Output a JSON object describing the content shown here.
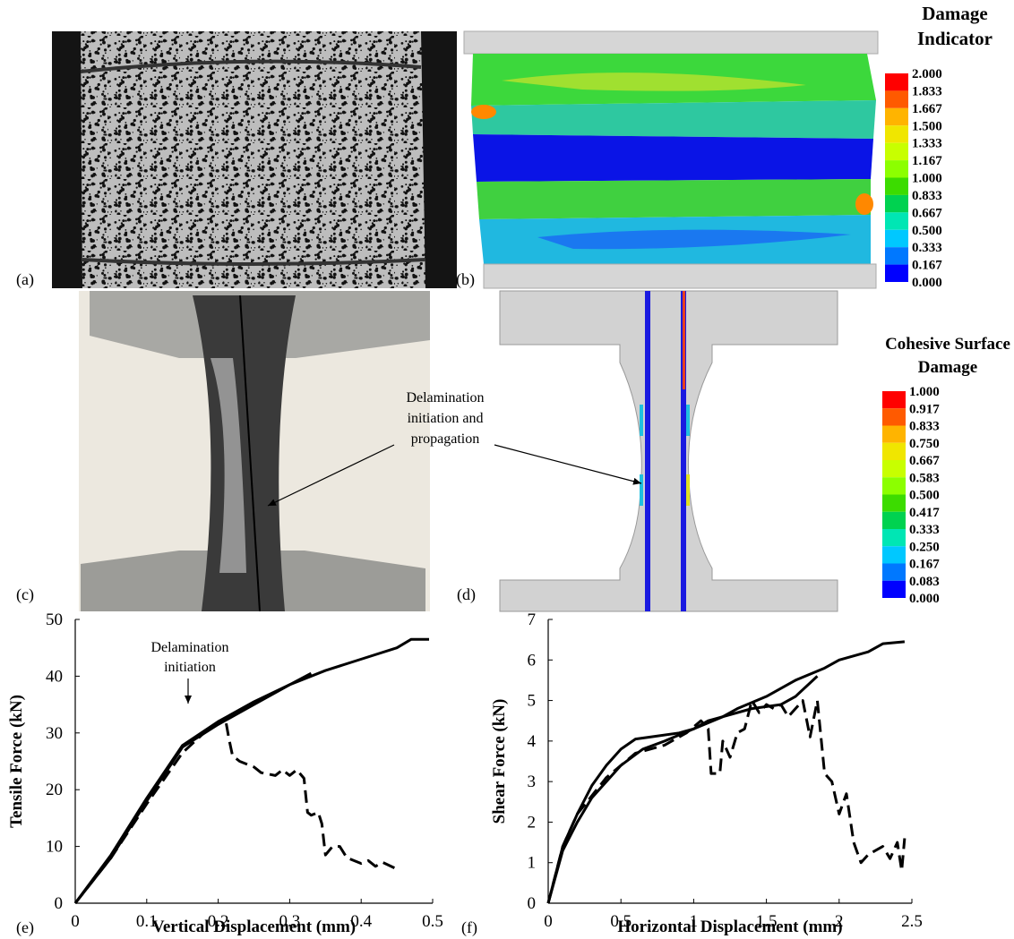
{
  "panel_labels": [
    "(a)",
    "(b)",
    "(c)",
    "(d)",
    "(e)",
    "(f)"
  ],
  "annotation": [
    "Delamination",
    "initiation and",
    "propagation"
  ],
  "colorbars": [
    {
      "title": [
        "Damage",
        "Indicator"
      ],
      "labels": [
        "2.000",
        "1.833",
        "1.667",
        "1.500",
        "1.333",
        "1.167",
        "1.000",
        "0.833",
        "0.667",
        "0.500",
        "0.333",
        "0.167",
        "0.000"
      ]
    },
    {
      "title": [
        "Cohesive Surface",
        "Damage"
      ],
      "labels": [
        "1.000",
        "0.917",
        "0.833",
        "0.750",
        "0.667",
        "0.583",
        "0.500",
        "0.417",
        "0.333",
        "0.250",
        "0.167",
        "0.083",
        "0.000"
      ]
    }
  ],
  "chart_data": [
    {
      "type": "line",
      "x_label": "Vertical Displacement (mm)",
      "y_label": "Tensile Force (kN)",
      "annotation": [
        "Delamination",
        "initiation"
      ],
      "xlim": [
        0,
        0.5
      ],
      "xticks": [
        0,
        0.1,
        0.2,
        0.3,
        0.4,
        0.5
      ],
      "ylim": [
        0,
        50
      ],
      "yticks": [
        0,
        10,
        20,
        30,
        40,
        50
      ],
      "series": [
        {
          "color": "#000000",
          "dash": false,
          "x": [
            0,
            0.05,
            0.1,
            0.15,
            0.2,
            0.25,
            0.3,
            0.35,
            0.4,
            0.45,
            0.47,
            0.495
          ],
          "values": [
            0,
            8,
            18,
            27.5,
            31.5,
            35,
            38.5,
            41,
            43,
            45,
            46.5,
            46.5
          ]
        },
        {
          "color": "#000000",
          "dash": false,
          "x": [
            0,
            0.05,
            0.1,
            0.15,
            0.2,
            0.25,
            0.3,
            0.33
          ],
          "values": [
            0,
            8.5,
            18.5,
            27.8,
            32,
            35.5,
            38.5,
            40.5
          ]
        },
        {
          "color": "#000000",
          "dash": true,
          "x": [
            0,
            0.05,
            0.1,
            0.15,
            0.18,
            0.21,
            0.215,
            0.22,
            0.23,
            0.25,
            0.26,
            0.28,
            0.29,
            0.3,
            0.31,
            0.32,
            0.325,
            0.33,
            0.34,
            0.345,
            0.35,
            0.36,
            0.37,
            0.38,
            0.4,
            0.41,
            0.42,
            0.43,
            0.45
          ],
          "values": [
            0,
            8,
            17.5,
            26.5,
            30,
            32.5,
            29,
            26,
            25,
            24,
            23,
            22.5,
            23.5,
            22.5,
            23.5,
            22,
            16,
            15.5,
            16,
            14,
            8.5,
            10,
            10,
            8,
            7,
            7.5,
            6.5,
            7.2,
            6
          ]
        }
      ]
    },
    {
      "type": "line",
      "x_label": "Horizontal Displacement (mm)",
      "y_label": "Shear Force (kN)",
      "xlim": [
        0,
        2.5
      ],
      "xticks": [
        0,
        0.5,
        1,
        1.5,
        2,
        2.5
      ],
      "ylim": [
        0,
        7
      ],
      "yticks": [
        0,
        1,
        2,
        3,
        4,
        5,
        6,
        7
      ],
      "series": [
        {
          "color": "#000000",
          "dash": false,
          "x": [
            0,
            0.1,
            0.2,
            0.3,
            0.4,
            0.5,
            0.6,
            0.7,
            0.9,
            1,
            1.1,
            1.2,
            1.3,
            1.5,
            1.7,
            1.9,
            2,
            2.2,
            2.3,
            2.45
          ],
          "values": [
            0,
            1.4,
            2.2,
            2.9,
            3.4,
            3.8,
            4.05,
            4.1,
            4.2,
            4.3,
            4.5,
            4.6,
            4.8,
            5.1,
            5.5,
            5.8,
            6,
            6.2,
            6.4,
            6.45
          ]
        },
        {
          "color": "#000000",
          "dash": false,
          "x": [
            0,
            0.1,
            0.2,
            0.3,
            0.5,
            0.65,
            0.8,
            1,
            1.2,
            1.4,
            1.6,
            1.7,
            1.85
          ],
          "values": [
            0,
            1.3,
            2,
            2.6,
            3.4,
            3.8,
            4,
            4.3,
            4.6,
            4.8,
            4.9,
            5.1,
            5.6
          ]
        },
        {
          "color": "#000000",
          "dash": true,
          "x": [
            0,
            0.1,
            0.2,
            0.4,
            0.6,
            0.8,
            0.95,
            1.05,
            1.1,
            1.12,
            1.18,
            1.2,
            1.25,
            1.3,
            1.35,
            1.4,
            1.45,
            1.5,
            1.55,
            1.6,
            1.65,
            1.7,
            1.75,
            1.8,
            1.85,
            1.9,
            1.95,
            2,
            2.05,
            2.1,
            2.15,
            2.2,
            2.3,
            2.35,
            2.4,
            2.43,
            2.45
          ],
          "values": [
            0,
            1.4,
            2.2,
            3.1,
            3.7,
            3.9,
            4.2,
            4.5,
            4.3,
            3.2,
            3.2,
            4,
            3.6,
            4.2,
            4.3,
            5,
            4.7,
            4.9,
            4.8,
            4.9,
            4.6,
            4.8,
            5,
            4.1,
            5,
            3.2,
            3,
            2.2,
            2.7,
            1.5,
            1,
            1.2,
            1.4,
            1.1,
            1.5,
            0.8,
            1.6
          ]
        }
      ]
    }
  ]
}
